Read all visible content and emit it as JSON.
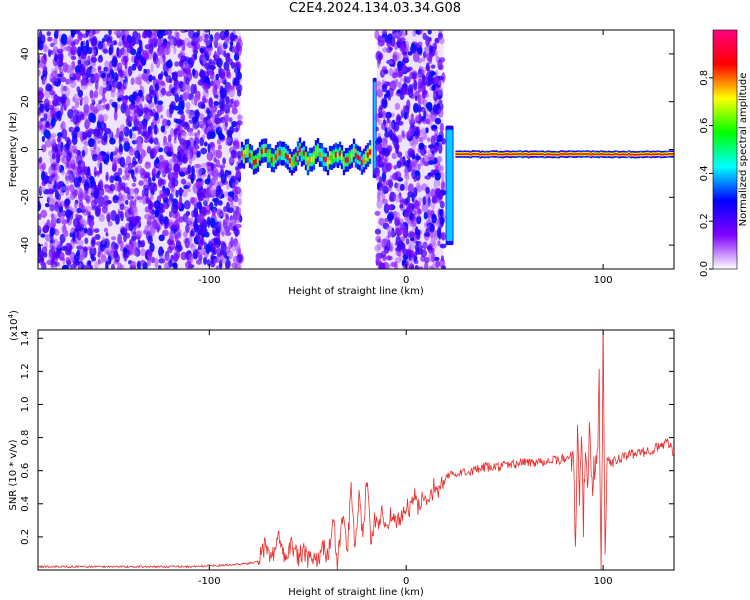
{
  "title": "C2E4.2024.134.03.34.G08",
  "spectrogram": {
    "type": "heatmap",
    "xlabel": "Height of straight line (km)",
    "ylabel": "Frequency (Hz)",
    "xlim": [
      -187,
      136
    ],
    "ylim": [
      -50,
      50
    ],
    "xticks": [
      -100,
      0,
      100
    ],
    "yticks": [
      -40,
      -20,
      0,
      20,
      40
    ],
    "colorbar": {
      "label": "Normalized spectral amplitude",
      "ticks": [
        "0.0",
        "0.2",
        "0.4",
        "0.6",
        "0.8"
      ],
      "tick_values": [
        0.0,
        0.2,
        0.4,
        0.6,
        0.8
      ],
      "range": [
        0,
        1
      ],
      "colors": [
        "#ffffff",
        "#8000ff",
        "#0000ff",
        "#00ffff",
        "#00ff00",
        "#ffff00",
        "#ff0000",
        "#ff0080"
      ]
    },
    "regions": [
      {
        "kind": "noise",
        "x": [
          -187,
          -84
        ],
        "y": [
          -50,
          50
        ]
      },
      {
        "kind": "signal",
        "x": [
          -84,
          -18
        ],
        "center_hz": -3,
        "spread_hz": 5
      },
      {
        "kind": "spike",
        "x": [
          -17,
          -15
        ],
        "y": [
          -12,
          30
        ]
      },
      {
        "kind": "noise",
        "x": [
          -15,
          19
        ],
        "y": [
          -50,
          50
        ]
      },
      {
        "kind": "spike",
        "x": [
          20,
          24
        ],
        "y": [
          -40,
          10
        ]
      },
      {
        "kind": "signal",
        "x": [
          25,
          136
        ],
        "center_hz": -2,
        "spread_hz": 1.5
      }
    ]
  },
  "snr": {
    "type": "line",
    "xlabel": "Height of straight line (km)",
    "ylabel": "SNR (10 * v/v)",
    "multiplier": "(x10",
    "multiplier_exp": "4",
    "multiplier_close": ")",
    "xlim": [
      -187,
      136
    ],
    "ylim": [
      0,
      1.45
    ],
    "xticks": [
      -100,
      0,
      100
    ],
    "yticks": [
      "0.2",
      "0.4",
      "0.6",
      "0.8",
      "1.0",
      "1.2",
      "1.4"
    ],
    "ytick_values": [
      0.2,
      0.4,
      0.6,
      0.8,
      1.0,
      1.2,
      1.4
    ],
    "line_color": "#e8312f",
    "series": [
      {
        "x": [
          -187,
          -170,
          -150,
          -130,
          -110,
          -90,
          -80,
          -75,
          -72,
          -68,
          -65,
          -62,
          -58,
          -55,
          -52,
          -50,
          -48,
          -45,
          -42,
          -40,
          -37,
          -35,
          -32,
          -30,
          -28,
          -26,
          -24,
          -22,
          -20,
          -18,
          -16,
          -14,
          -12,
          -10,
          -8,
          -5,
          -2,
          0,
          2,
          4,
          6,
          8,
          10,
          12,
          14,
          16,
          18,
          20,
          23,
          26,
          30,
          35,
          40,
          45,
          50,
          55,
          60,
          65,
          70,
          75,
          80,
          83,
          85,
          86,
          87,
          88,
          89,
          90,
          91,
          92,
          93,
          94,
          95,
          96,
          97,
          98,
          99,
          100,
          101,
          102,
          104,
          106,
          110,
          115,
          120,
          125,
          130,
          133,
          136
        ],
        "y": [
          0.02,
          0.02,
          0.02,
          0.02,
          0.02,
          0.03,
          0.04,
          0.05,
          0.14,
          0.08,
          0.2,
          0.1,
          0.15,
          0.07,
          0.12,
          0.05,
          0.08,
          0.04,
          0.15,
          0.08,
          0.3,
          0.05,
          0.35,
          0.1,
          0.5,
          0.15,
          0.45,
          0.22,
          0.55,
          0.18,
          0.3,
          0.25,
          0.35,
          0.28,
          0.33,
          0.3,
          0.32,
          0.4,
          0.36,
          0.45,
          0.38,
          0.42,
          0.45,
          0.44,
          0.5,
          0.47,
          0.52,
          0.55,
          0.58,
          0.57,
          0.6,
          0.6,
          0.62,
          0.62,
          0.63,
          0.64,
          0.65,
          0.65,
          0.66,
          0.66,
          0.67,
          0.68,
          0.75,
          0.05,
          0.98,
          0.4,
          0.8,
          0.3,
          0.7,
          0.5,
          0.9,
          0.6,
          0.55,
          0.6,
          0.62,
          1.1,
          0.02,
          1.43,
          0.08,
          0.7,
          0.63,
          0.66,
          0.68,
          0.7,
          0.71,
          0.73,
          0.75,
          0.78,
          0.7
        ]
      }
    ]
  }
}
